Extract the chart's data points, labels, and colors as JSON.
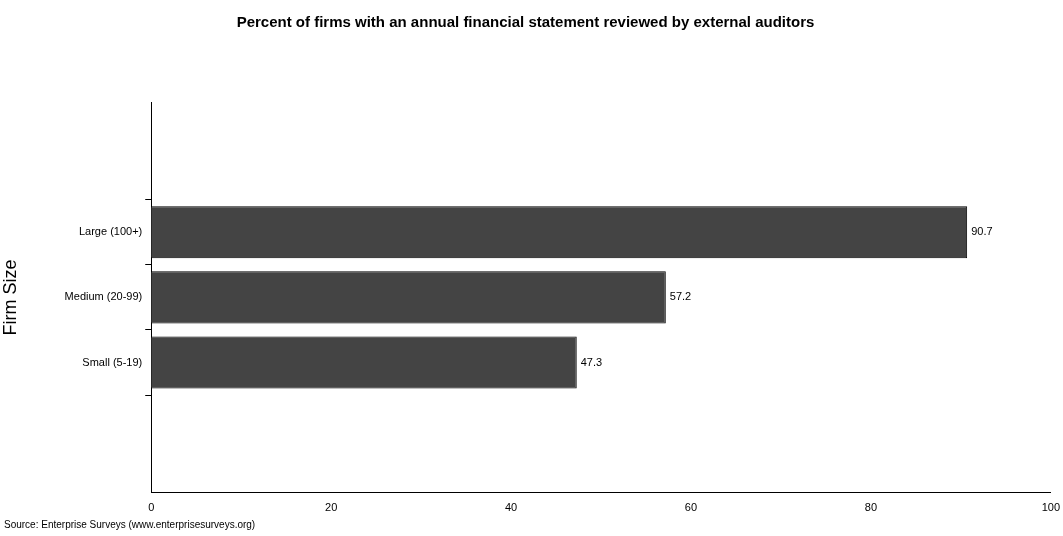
{
  "chart_data": {
    "type": "bar",
    "orientation": "horizontal",
    "title": "Percent of firms with an annual financial statement reviewed by external auditors",
    "ylabel": "Firm Size",
    "categories": [
      "Large (100+)",
      "Medium (20-99)",
      "Small (5-19)"
    ],
    "values": [
      90.7,
      57.2,
      47.3
    ],
    "color": "#444444",
    "xlim": [
      0,
      100
    ],
    "xticks": [
      0,
      20,
      40,
      60,
      80,
      100
    ],
    "grid": false,
    "legend": false,
    "data_labels": true,
    "annotations": [
      "Source: Enterprise Surveys (www.enterprisesurveys.org)"
    ]
  }
}
